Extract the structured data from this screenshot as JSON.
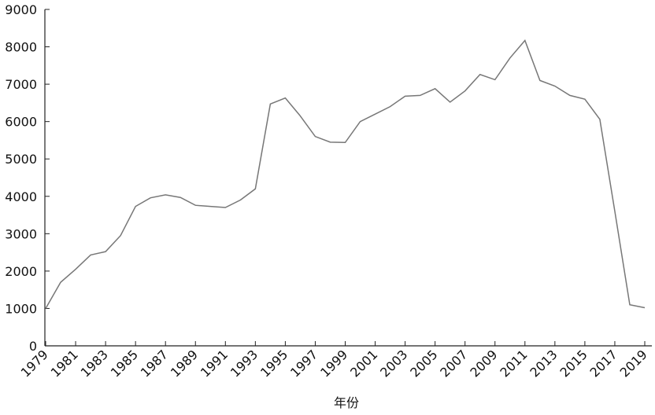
{
  "chart_data": {
    "type": "line",
    "x_label": "年份",
    "x": [
      1979,
      1980,
      1981,
      1982,
      1983,
      1984,
      1985,
      1986,
      1987,
      1988,
      1989,
      1990,
      1991,
      1992,
      1993,
      1994,
      1995,
      1996,
      1997,
      1998,
      1999,
      2000,
      2001,
      2002,
      2003,
      2004,
      2005,
      2006,
      2007,
      2008,
      2009,
      2010,
      2011,
      2012,
      2013,
      2014,
      2015,
      2016,
      2017,
      2018,
      2019
    ],
    "series": [
      {
        "name": null,
        "color": "#777777",
        "values": [
          1000,
          1700,
          2050,
          2430,
          2520,
          2950,
          3730,
          3960,
          4040,
          3970,
          3760,
          3730,
          3700,
          3900,
          4200,
          6470,
          6630,
          6150,
          5600,
          5450,
          5440,
          6000,
          6200,
          6400,
          6680,
          6700,
          6880,
          6520,
          6820,
          7260,
          7120,
          7700,
          8170,
          7100,
          6950,
          6700,
          6600,
          6060,
          3600,
          1100,
          1020
        ]
      }
    ],
    "xlim": [
      1979,
      2019
    ],
    "xticks": [
      1979,
      1981,
      1983,
      1985,
      1987,
      1989,
      1991,
      1993,
      1995,
      1997,
      1999,
      2001,
      2003,
      2005,
      2007,
      2009,
      2011,
      2013,
      2015,
      2017,
      2019
    ],
    "ylim": [
      0,
      9000
    ],
    "yticks": [
      0,
      1000,
      2000,
      3000,
      4000,
      5000,
      6000,
      7000,
      8000,
      9000
    ],
    "grid": false
  }
}
